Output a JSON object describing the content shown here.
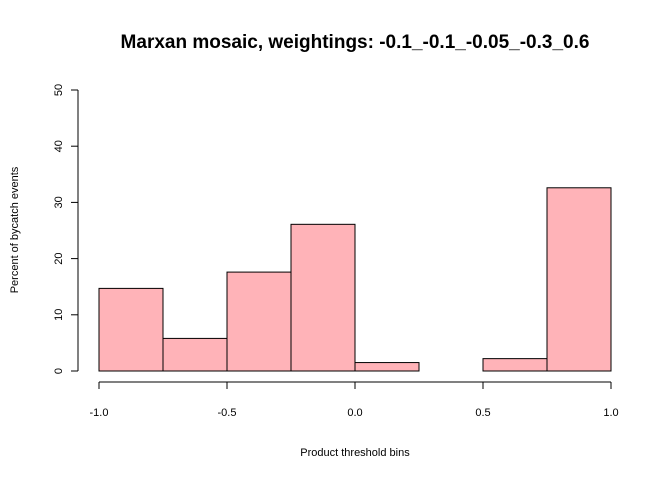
{
  "chart_data": {
    "type": "bar",
    "title": "Marxan mosaic, weightings: -0.1_-0.1_-0.05_-0.3_0.6",
    "xlabel": "Product threshold bins",
    "ylabel": "Percent of bycatch events",
    "bin_edges": [
      -1.0,
      -0.75,
      -0.5,
      -0.25,
      0.0,
      0.25,
      0.5,
      0.75,
      1.0
    ],
    "values": [
      14.7,
      5.8,
      17.6,
      26.1,
      1.5,
      0.0,
      2.2,
      32.6
    ],
    "xlim": [
      -1.0,
      1.0
    ],
    "ylim": [
      0,
      50
    ],
    "x_ticks": [
      -1.0,
      -0.5,
      0.0,
      0.5,
      1.0
    ],
    "x_tick_labels": [
      "-1.0",
      "-0.5",
      "0.0",
      "0.5",
      "1.0"
    ],
    "y_ticks": [
      0,
      10,
      20,
      30,
      40,
      50
    ],
    "y_tick_labels": [
      "0",
      "10",
      "20",
      "30",
      "40",
      "50"
    ],
    "bar_color": "#ffb3b8",
    "grid": false,
    "legend": "none"
  }
}
